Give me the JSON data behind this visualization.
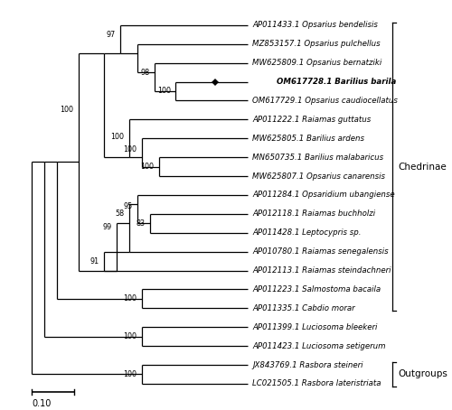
{
  "taxa": [
    {
      "accession": "AP011433.1",
      "species": "Opsarius bendelisis",
      "bold": false,
      "y": 20
    },
    {
      "accession": "MZ853157.1",
      "species": "Opsarius pulchellus",
      "bold": false,
      "y": 19
    },
    {
      "accession": "MW625809.1",
      "species": "Opsarius bernatziki",
      "bold": false,
      "y": 18
    },
    {
      "accession": "OM617728.1",
      "species": "Barilius barila",
      "bold": true,
      "y": 17,
      "diamond": true
    },
    {
      "accession": "OM617729.1",
      "species": "Opsarius caudiocellatus",
      "bold": false,
      "y": 16
    },
    {
      "accession": "AP011222.1",
      "species": "Raiamas guttatus",
      "bold": false,
      "y": 15
    },
    {
      "accession": "MW625805.1",
      "species": "Barilius ardens",
      "bold": false,
      "y": 14
    },
    {
      "accession": "MN650735.1",
      "species": "Barilius malabaricus",
      "bold": false,
      "y": 13
    },
    {
      "accession": "MW625807.1",
      "species": "Opsarius canarensis",
      "bold": false,
      "y": 12
    },
    {
      "accession": "AP011284.1",
      "species": "Opsaridium ubangiense",
      "bold": false,
      "y": 11
    },
    {
      "accession": "AP012118.1",
      "species": "Raiamas buchholzi",
      "bold": false,
      "y": 10
    },
    {
      "accession": "AP011428.1",
      "species": "Leptocypris sp.",
      "bold": false,
      "y": 9
    },
    {
      "accession": "AP010780.1",
      "species": "Raiamas senegalensis",
      "bold": false,
      "y": 8
    },
    {
      "accession": "AP012113.1",
      "species": "Raiamas steindachneri",
      "bold": false,
      "y": 7
    },
    {
      "accession": "AP011223.1",
      "species": "Salmostoma bacaila",
      "bold": false,
      "y": 6
    },
    {
      "accession": "AP011335.1",
      "species": "Cabdio morar",
      "bold": false,
      "y": 5
    },
    {
      "accession": "AP011399.1",
      "species": "Luciosoma bleekeri",
      "bold": false,
      "y": 4
    },
    {
      "accession": "AP011423.1",
      "species": "Luciosoma setigerum",
      "bold": false,
      "y": 3
    },
    {
      "accession": "JX843769.1",
      "species": "Rasbora steineri",
      "bold": false,
      "y": 2
    },
    {
      "accession": "LC021505.1",
      "species": "Rasbora lateristriata",
      "bold": false,
      "y": 1
    }
  ],
  "font_size": 6.2,
  "bootstrap_font_size": 5.8,
  "lw": 0.9
}
